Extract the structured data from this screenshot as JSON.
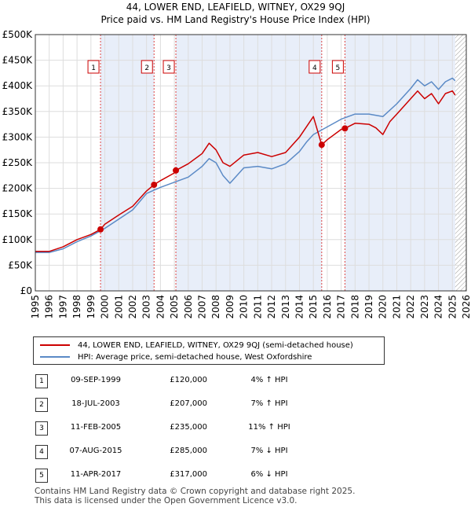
{
  "title_line1": "44, LOWER END, LEAFIELD, WITNEY, OX29 9QJ",
  "title_line2": "Price paid vs. HM Land Registry's House Price Index (HPI)",
  "legend": [
    {
      "label": "44, LOWER END, LEAFIELD, WITNEY, OX29 9QJ (semi-detached house)",
      "color": "#cc0000"
    },
    {
      "label": "HPI: Average price, semi-detached house, West Oxfordshire",
      "color": "#5b8ac6"
    }
  ],
  "transactions": [
    {
      "num": "1",
      "date": "09-SEP-1999",
      "price": "£120,000",
      "pct": "4% ↑ HPI"
    },
    {
      "num": "2",
      "date": "18-JUL-2003",
      "price": "£207,000",
      "pct": "7% ↑ HPI"
    },
    {
      "num": "3",
      "date": "11-FEB-2005",
      "price": "£235,000",
      "pct": "11% ↑ HPI"
    },
    {
      "num": "4",
      "date": "07-AUG-2015",
      "price": "£285,000",
      "pct": "7% ↓ HPI"
    },
    {
      "num": "5",
      "date": "11-APR-2017",
      "price": "£317,000",
      "pct": "6% ↓ HPI"
    }
  ],
  "footer_line1": "Contains HM Land Registry data © Crown copyright and database right 2025.",
  "footer_line2": "This data is licensed under the Open Government Licence v3.0.",
  "chart_data": {
    "type": "line",
    "xlim": [
      1995,
      2026
    ],
    "ylim": [
      0,
      500000
    ],
    "yticks": [
      0,
      50000,
      100000,
      150000,
      200000,
      250000,
      300000,
      350000,
      400000,
      450000,
      500000
    ],
    "ytick_labels": [
      "£0",
      "£50K",
      "£100K",
      "£150K",
      "£200K",
      "£250K",
      "£300K",
      "£350K",
      "£400K",
      "£450K",
      "£500K"
    ],
    "xticks": [
      1995,
      1996,
      1997,
      1998,
      1999,
      2000,
      2001,
      2002,
      2003,
      2004,
      2005,
      2006,
      2007,
      2008,
      2009,
      2010,
      2011,
      2012,
      2013,
      2014,
      2015,
      2016,
      2017,
      2018,
      2019,
      2020,
      2021,
      2022,
      2023,
      2024,
      2025,
      2026
    ],
    "grid": true,
    "shaded_periods": [
      [
        1999.69,
        2003.54
      ],
      [
        2005.11,
        2015.6
      ],
      [
        2017.27,
        2025.2
      ]
    ],
    "hatched_from": 2025.2,
    "series": [
      {
        "name": "44, LOWER END, LEAFIELD, WITNEY, OX29 9QJ (semi-detached house)",
        "color": "#cc0000",
        "x": [
          1995,
          1996,
          1997,
          1998,
          1999,
          1999.69,
          2000,
          2001,
          2002,
          2003,
          2003.54,
          2004,
          2005,
          2005.11,
          2006,
          2007,
          2007.5,
          2008,
          2008.5,
          2009,
          2010,
          2011,
          2012,
          2013,
          2014,
          2014.5,
          2015,
          2015.6,
          2016,
          2017,
          2017.27,
          2018,
          2019,
          2019.5,
          2020,
          2020.5,
          2021,
          2022,
          2022.5,
          2023,
          2023.5,
          2024,
          2024.5,
          2025,
          2025.2
        ],
        "y": [
          77000,
          77000,
          86000,
          100000,
          110000,
          120000,
          130000,
          148000,
          165000,
          195000,
          207000,
          215000,
          230000,
          235000,
          248000,
          268000,
          288000,
          275000,
          250000,
          243000,
          265000,
          270000,
          262000,
          270000,
          300000,
          320000,
          340000,
          285000,
          295000,
          315000,
          317000,
          327000,
          325000,
          318000,
          305000,
          330000,
          345000,
          375000,
          390000,
          375000,
          385000,
          365000,
          385000,
          390000,
          382000
        ]
      },
      {
        "name": "HPI: Average price, semi-detached house, West Oxfordshire",
        "color": "#5b8ac6",
        "x": [
          1995,
          1996,
          1997,
          1998,
          1999,
          2000,
          2001,
          2002,
          2003,
          2004,
          2005,
          2006,
          2007,
          2007.5,
          2008,
          2008.5,
          2009,
          2010,
          2011,
          2012,
          2013,
          2014,
          2014.5,
          2015,
          2016,
          2017,
          2018,
          2019,
          2020,
          2021,
          2022,
          2022.5,
          2023,
          2023.5,
          2024,
          2024.5,
          2025,
          2025.2
        ],
        "y": [
          75000,
          75000,
          82000,
          96000,
          107000,
          122000,
          140000,
          158000,
          190000,
          202000,
          212000,
          222000,
          243000,
          258000,
          250000,
          225000,
          210000,
          240000,
          243000,
          238000,
          248000,
          272000,
          290000,
          305000,
          320000,
          335000,
          345000,
          345000,
          340000,
          365000,
          395000,
          412000,
          400000,
          408000,
          393000,
          408000,
          415000,
          410000
        ]
      }
    ],
    "sale_markers": [
      {
        "label": "1",
        "x": 1999.69,
        "y": 120000
      },
      {
        "label": "2",
        "x": 2003.54,
        "y": 207000
      },
      {
        "label": "3",
        "x": 2005.11,
        "y": 235000
      },
      {
        "label": "4",
        "x": 2015.6,
        "y": 285000
      },
      {
        "label": "5",
        "x": 2017.27,
        "y": 317000
      }
    ]
  }
}
